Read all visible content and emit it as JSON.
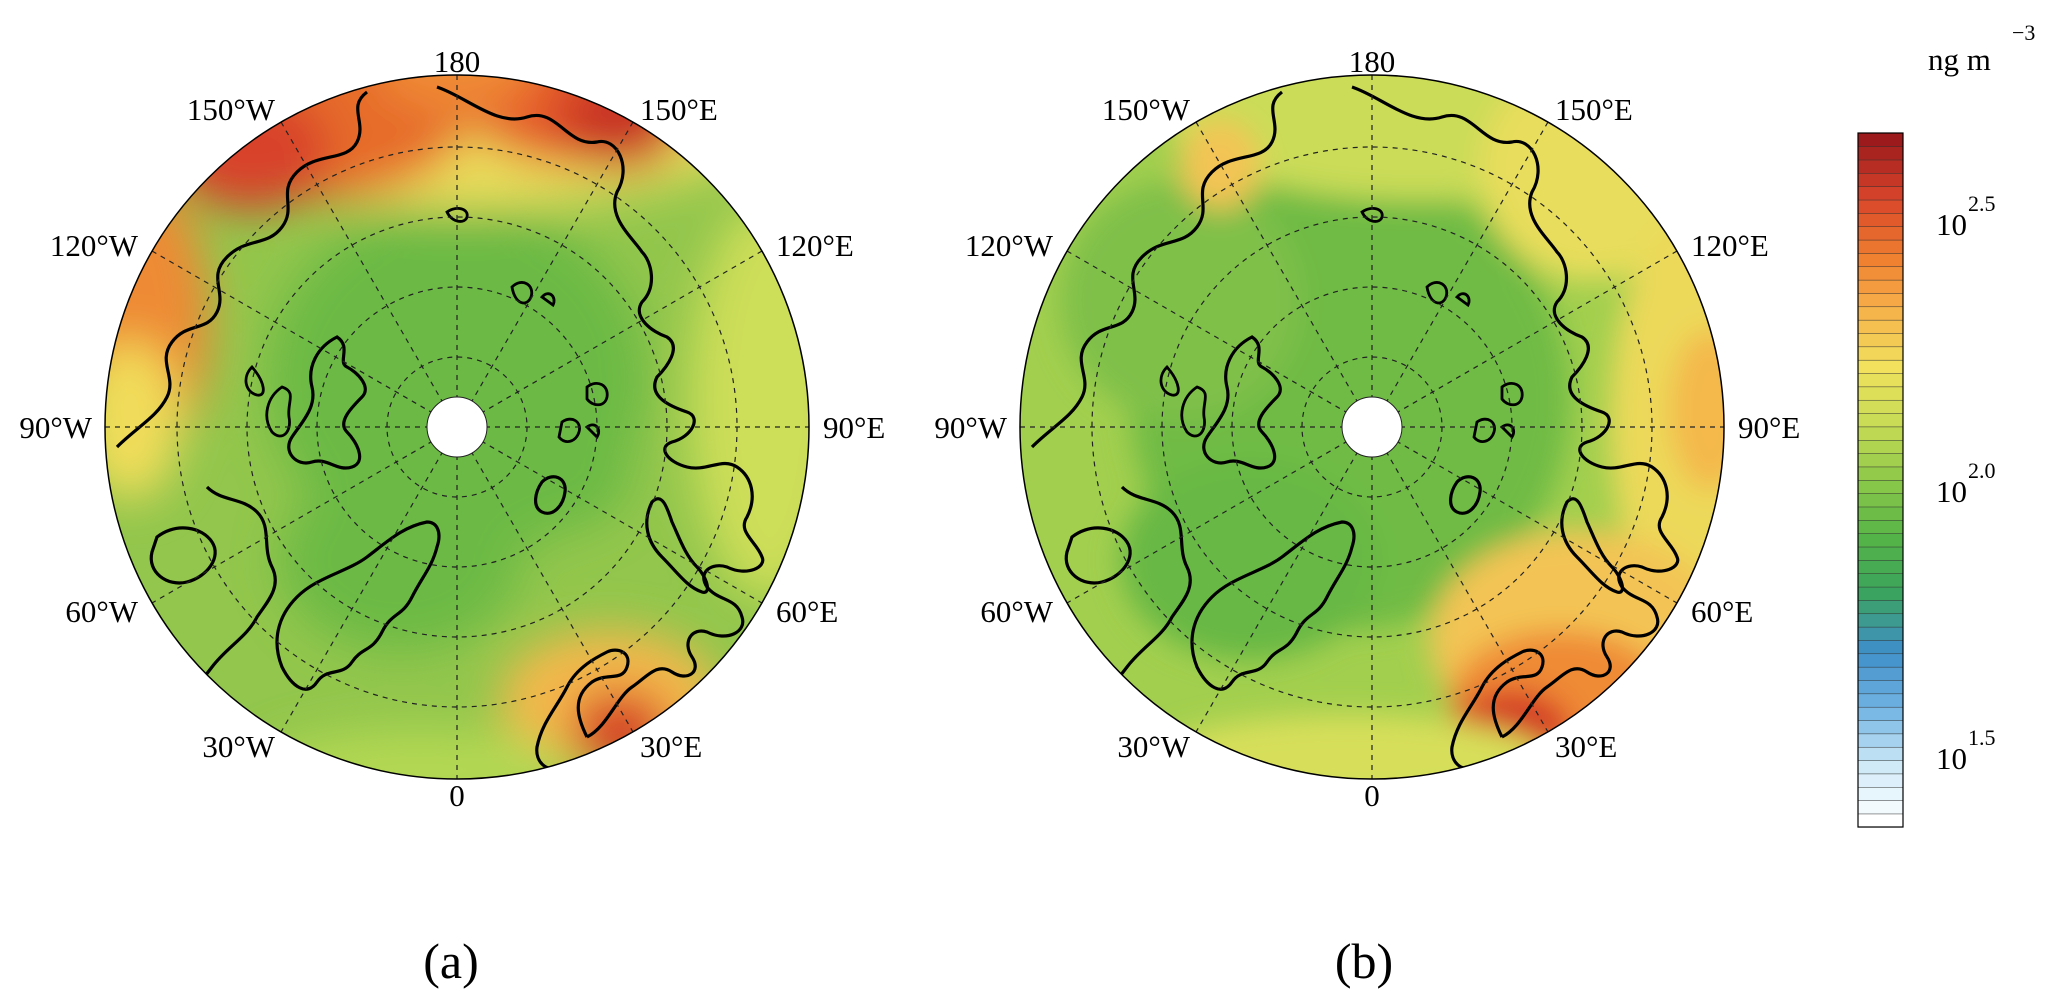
{
  "panels": [
    {
      "caption": "(a)",
      "lon_labels": [
        "180",
        "150°E",
        "120°E",
        "90°E",
        "60°E",
        "30°E",
        "0",
        "30°W",
        "60°W",
        "90°W",
        "120°W",
        "150°W"
      ]
    },
    {
      "caption": "(b)",
      "lon_labels": [
        "180",
        "150°E",
        "120°E",
        "90°E",
        "60°E",
        "30°E",
        "0",
        "30°W",
        "60°W",
        "90°W",
        "120°W",
        "150°W"
      ]
    }
  ],
  "colorbar": {
    "unit_base": "ng m",
    "unit_exponent": "−3",
    "scale": "log10",
    "range": [
      1.35,
      2.65
    ],
    "ticks": [
      {
        "base": "10",
        "exponent": "2.5",
        "value": 2.5
      },
      {
        "base": "10",
        "exponent": "2.0",
        "value": 2.0
      },
      {
        "base": "10",
        "exponent": "1.5",
        "value": 1.5
      }
    ],
    "colors": [
      "#ffffff",
      "#cde9f8",
      "#6fb2e2",
      "#3f8fc8",
      "#3aa35f",
      "#55b447",
      "#8dc848",
      "#c8dc55",
      "#f1e15d",
      "#f6b24a",
      "#ee7a2e",
      "#d8432b",
      "#9c1a1b"
    ]
  }
}
